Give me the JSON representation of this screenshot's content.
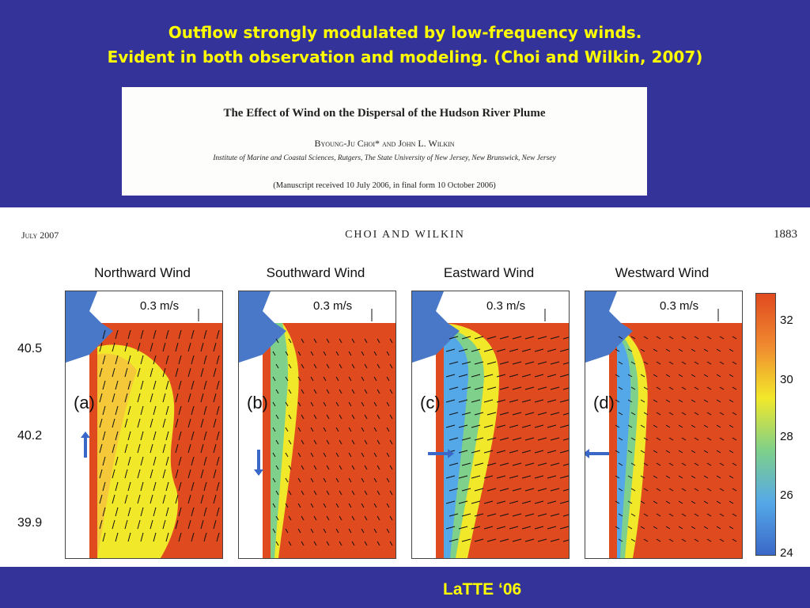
{
  "slide": {
    "title_line1": "Outflow strongly modulated by low-frequency winds.",
    "title_line2": "Evident in both observation and modeling. (Choi and Wilkin, 2007)",
    "footer": "LaTTE ‘06"
  },
  "paper": {
    "title": "The Effect of Wind on the Dispersal of the Hudson River Plume",
    "authors": "Byoung-Ju Choi* and John L. Wilkin",
    "institution": "Institute of Marine and Coastal Sciences, Rutgers, The State University of New Jersey, New Brunswick, New Jersey",
    "received": "(Manuscript received 10 July 2006, in final form 10 October 2006)"
  },
  "figure": {
    "journal": "July 2007",
    "authors": "CHOI AND WILKIN",
    "page": "1883",
    "latitudes": [
      "40.5",
      "40.2",
      "39.9"
    ],
    "panels": [
      {
        "title": "Northward Wind",
        "letter": "(a)",
        "scale": "0.3 m/s",
        "wind": "north"
      },
      {
        "title": "Southward Wind",
        "letter": "(b)",
        "scale": "0.3 m/s",
        "wind": "south"
      },
      {
        "title": "Eastward Wind",
        "letter": "(c)",
        "scale": "0.3 m/s",
        "wind": "east"
      },
      {
        "title": "Westward Wind",
        "letter": "(d)",
        "scale": "0.3 m/s",
        "wind": "west"
      }
    ],
    "colorbar": {
      "ticks": [
        "32",
        "30",
        "28",
        "26",
        "24"
      ],
      "colors": [
        "#e04a1f",
        "#f08a30",
        "#f2e82a",
        "#7ed08a",
        "#55a8e8",
        "#3a68c8"
      ]
    }
  }
}
